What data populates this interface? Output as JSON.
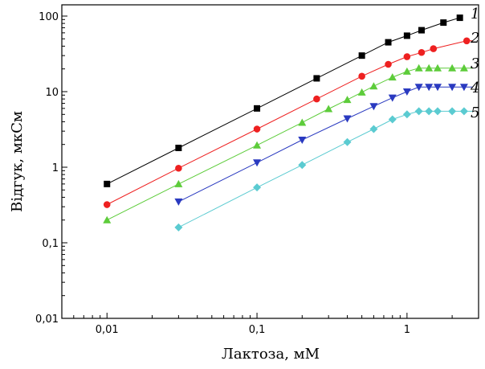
{
  "chart_data": {
    "type": "scatter",
    "xlabel": "Лактоза, мМ",
    "ylabel": "Відгук, мкСм",
    "xscale": "log",
    "yscale": "log",
    "xlim": [
      0.005,
      3
    ],
    "ylim": [
      0.01,
      100
    ],
    "xticks": [
      0.01,
      0.1,
      1
    ],
    "xtick_labels": [
      "0,01",
      "0,1",
      "1"
    ],
    "yticks": [
      0.01,
      0.1,
      1,
      10,
      100
    ],
    "ytick_labels": [
      "0,01",
      "0,1",
      "1",
      "10",
      "100"
    ],
    "grid": false,
    "legend": "series labels at right end of curves",
    "series": [
      {
        "name": "1",
        "color": "#000000",
        "marker": "square",
        "x": [
          0.01,
          0.03,
          0.1,
          0.25,
          0.5,
          0.75,
          1.0,
          1.25,
          1.75,
          2.25
        ],
        "y": [
          0.6,
          1.8,
          6.0,
          15,
          30,
          45,
          55,
          65,
          82,
          95
        ]
      },
      {
        "name": "2",
        "color": "#ee2020",
        "marker": "circle",
        "x": [
          0.01,
          0.03,
          0.1,
          0.25,
          0.5,
          0.75,
          1.0,
          1.25,
          1.5,
          2.5
        ],
        "y": [
          0.32,
          0.97,
          3.2,
          8.0,
          16,
          23,
          29,
          33,
          37,
          47
        ]
      },
      {
        "name": "3",
        "color": "#5dcc3a",
        "marker": "triangle-up",
        "x": [
          0.01,
          0.03,
          0.1,
          0.2,
          0.3,
          0.4,
          0.5,
          0.6,
          0.8,
          1.0,
          1.2,
          1.4,
          1.6,
          2.0,
          2.4
        ],
        "y": [
          0.2,
          0.6,
          1.95,
          3.9,
          5.9,
          7.8,
          9.8,
          11.8,
          15.5,
          18.5,
          20.5,
          20.5,
          20.5,
          20.5,
          20.5
        ]
      },
      {
        "name": "4",
        "color": "#2a3ac0",
        "marker": "triangle-down",
        "x": [
          0.03,
          0.1,
          0.2,
          0.4,
          0.6,
          0.8,
          1.0,
          1.2,
          1.4,
          1.6,
          2.0,
          2.4
        ],
        "y": [
          0.35,
          1.15,
          2.3,
          4.4,
          6.4,
          8.3,
          10,
          11.5,
          11.5,
          11.5,
          11.5,
          11.5
        ]
      },
      {
        "name": "5",
        "color": "#5bcbd1",
        "marker": "diamond",
        "x": [
          0.03,
          0.1,
          0.2,
          0.4,
          0.6,
          0.8,
          1.0,
          1.2,
          1.4,
          1.6,
          2.0,
          2.4
        ],
        "y": [
          0.16,
          0.54,
          1.07,
          2.15,
          3.2,
          4.3,
          5.0,
          5.5,
          5.5,
          5.5,
          5.5,
          5.5
        ]
      }
    ]
  }
}
